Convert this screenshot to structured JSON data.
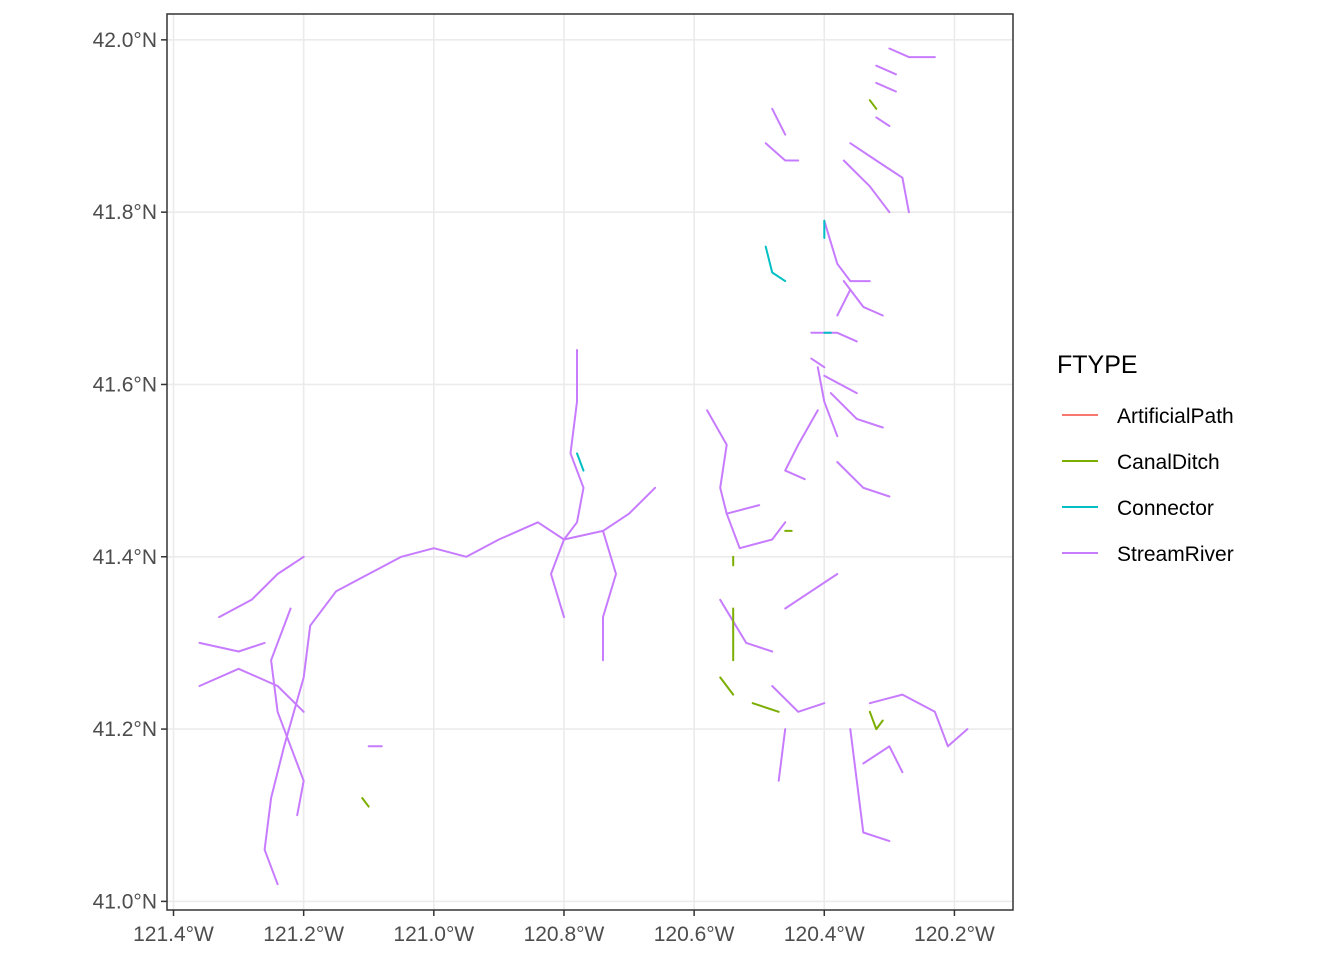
{
  "map": {
    "x_ticks": [
      "121.4°W",
      "121.2°W",
      "121.0°W",
      "120.8°W",
      "120.6°W",
      "120.4°W",
      "120.2°W"
    ],
    "y_ticks": [
      "42.0°N",
      "41.8°N",
      "41.6°N",
      "41.4°N",
      "41.2°N",
      "41.0°N"
    ],
    "x_tick_values": [
      -121.4,
      -121.2,
      -121.0,
      -120.8,
      -120.6,
      -120.4,
      -120.2
    ],
    "y_tick_values": [
      42.0,
      41.8,
      41.6,
      41.4,
      41.2,
      41.0
    ],
    "xlim": [
      -121.41,
      -120.11
    ],
    "ylim": [
      40.99,
      42.03
    ]
  },
  "legend": {
    "title": "FTYPE",
    "items": [
      {
        "label": "ArtificialPath",
        "color": "#F8766D"
      },
      {
        "label": "CanalDitch",
        "color": "#7CAE00"
      },
      {
        "label": "Connector",
        "color": "#00BFC4"
      },
      {
        "label": "StreamRiver",
        "color": "#C77CFF"
      }
    ]
  },
  "chart_data": {
    "type": "line",
    "xlim": [
      -121.41,
      -120.11
    ],
    "ylim": [
      40.99,
      42.03
    ],
    "grid": true,
    "legend_position": "right",
    "series": [
      {
        "name": "StreamRiver",
        "color": "#C77CFF",
        "paths": [
          [
            [
              -121.24,
              41.02
            ],
            [
              -121.26,
              41.06
            ],
            [
              -121.25,
              41.12
            ],
            [
              -121.23,
              41.18
            ],
            [
              -121.2,
              41.26
            ],
            [
              -121.19,
              41.32
            ],
            [
              -121.15,
              41.36
            ],
            [
              -121.1,
              41.38
            ],
            [
              -121.05,
              41.4
            ],
            [
              -121.0,
              41.41
            ],
            [
              -120.95,
              41.4
            ],
            [
              -120.9,
              41.42
            ],
            [
              -120.84,
              41.44
            ],
            [
              -120.8,
              41.42
            ],
            [
              -120.74,
              41.43
            ],
            [
              -120.7,
              41.45
            ],
            [
              -120.66,
              41.48
            ]
          ],
          [
            [
              -121.33,
              41.33
            ],
            [
              -121.28,
              41.35
            ],
            [
              -121.24,
              41.38
            ],
            [
              -121.2,
              41.4
            ]
          ],
          [
            [
              -121.36,
              41.3
            ],
            [
              -121.3,
              41.29
            ],
            [
              -121.26,
              41.3
            ]
          ],
          [
            [
              -121.36,
              41.25
            ],
            [
              -121.3,
              41.27
            ],
            [
              -121.24,
              41.25
            ],
            [
              -121.2,
              41.22
            ]
          ],
          [
            [
              -121.22,
              41.34
            ],
            [
              -121.25,
              41.28
            ],
            [
              -121.24,
              41.22
            ],
            [
              -121.22,
              41.18
            ],
            [
              -121.2,
              41.14
            ],
            [
              -121.21,
              41.1
            ]
          ],
          [
            [
              -121.1,
              41.18
            ],
            [
              -121.08,
              41.18
            ]
          ],
          [
            [
              -120.78,
              41.64
            ],
            [
              -120.78,
              41.58
            ],
            [
              -120.79,
              41.52
            ],
            [
              -120.77,
              41.48
            ],
            [
              -120.78,
              41.44
            ],
            [
              -120.8,
              41.42
            ]
          ],
          [
            [
              -120.8,
              41.42
            ],
            [
              -120.82,
              41.38
            ],
            [
              -120.8,
              41.33
            ]
          ],
          [
            [
              -120.74,
              41.43
            ],
            [
              -120.72,
              41.38
            ],
            [
              -120.74,
              41.33
            ],
            [
              -120.74,
              41.28
            ]
          ],
          [
            [
              -120.58,
              41.57
            ],
            [
              -120.55,
              41.53
            ],
            [
              -120.56,
              41.48
            ],
            [
              -120.55,
              41.45
            ],
            [
              -120.5,
              41.46
            ]
          ],
          [
            [
              -120.55,
              41.45
            ],
            [
              -120.53,
              41.41
            ],
            [
              -120.48,
              41.42
            ],
            [
              -120.46,
              41.44
            ]
          ],
          [
            [
              -120.56,
              41.35
            ],
            [
              -120.52,
              41.3
            ],
            [
              -120.48,
              41.29
            ]
          ],
          [
            [
              -120.46,
              41.34
            ],
            [
              -120.42,
              41.36
            ],
            [
              -120.38,
              41.38
            ]
          ],
          [
            [
              -120.48,
              41.25
            ],
            [
              -120.44,
              41.22
            ],
            [
              -120.4,
              41.23
            ]
          ],
          [
            [
              -120.46,
              41.2
            ],
            [
              -120.47,
              41.14
            ]
          ],
          [
            [
              -120.36,
              41.2
            ],
            [
              -120.35,
              41.14
            ],
            [
              -120.34,
              41.08
            ],
            [
              -120.3,
              41.07
            ]
          ],
          [
            [
              -120.34,
              41.16
            ],
            [
              -120.3,
              41.18
            ],
            [
              -120.28,
              41.15
            ]
          ],
          [
            [
              -120.33,
              41.23
            ],
            [
              -120.28,
              41.24
            ],
            [
              -120.23,
              41.22
            ],
            [
              -120.21,
              41.18
            ],
            [
              -120.18,
              41.2
            ]
          ],
          [
            [
              -120.41,
              41.62
            ],
            [
              -120.4,
              41.58
            ],
            [
              -120.38,
              41.54
            ]
          ],
          [
            [
              -120.39,
              41.59
            ],
            [
              -120.35,
              41.56
            ],
            [
              -120.31,
              41.55
            ]
          ],
          [
            [
              -120.4,
              41.61
            ],
            [
              -120.35,
              41.59
            ]
          ],
          [
            [
              -120.38,
              41.51
            ],
            [
              -120.34,
              41.48
            ],
            [
              -120.3,
              41.47
            ]
          ],
          [
            [
              -120.41,
              41.57
            ],
            [
              -120.44,
              41.53
            ],
            [
              -120.46,
              41.5
            ],
            [
              -120.43,
              41.49
            ]
          ],
          [
            [
              -120.4,
              41.79
            ],
            [
              -120.38,
              41.74
            ],
            [
              -120.36,
              41.72
            ],
            [
              -120.33,
              41.72
            ]
          ],
          [
            [
              -120.37,
              41.72
            ],
            [
              -120.34,
              41.69
            ],
            [
              -120.31,
              41.68
            ]
          ],
          [
            [
              -120.36,
              41.71
            ],
            [
              -120.38,
              41.68
            ]
          ],
          [
            [
              -120.42,
              41.66
            ],
            [
              -120.38,
              41.66
            ],
            [
              -120.35,
              41.65
            ]
          ],
          [
            [
              -120.42,
              41.63
            ],
            [
              -120.4,
              41.62
            ]
          ],
          [
            [
              -120.48,
              41.92
            ],
            [
              -120.46,
              41.89
            ]
          ],
          [
            [
              -120.49,
              41.88
            ],
            [
              -120.46,
              41.86
            ],
            [
              -120.44,
              41.86
            ]
          ],
          [
            [
              -120.3,
              41.99
            ],
            [
              -120.27,
              41.98
            ],
            [
              -120.23,
              41.98
            ]
          ],
          [
            [
              -120.32,
              41.97
            ],
            [
              -120.29,
              41.96
            ]
          ],
          [
            [
              -120.32,
              41.95
            ],
            [
              -120.29,
              41.94
            ]
          ],
          [
            [
              -120.32,
              41.91
            ],
            [
              -120.3,
              41.9
            ]
          ],
          [
            [
              -120.36,
              41.88
            ],
            [
              -120.32,
              41.86
            ],
            [
              -120.28,
              41.84
            ],
            [
              -120.27,
              41.8
            ]
          ],
          [
            [
              -120.37,
              41.86
            ],
            [
              -120.33,
              41.83
            ],
            [
              -120.3,
              41.8
            ]
          ]
        ]
      },
      {
        "name": "CanalDitch",
        "color": "#7CAE00",
        "paths": [
          [
            [
              -120.54,
              41.34
            ],
            [
              -120.54,
              41.28
            ]
          ],
          [
            [
              -120.56,
              41.26
            ],
            [
              -120.54,
              41.24
            ]
          ],
          [
            [
              -120.51,
              41.23
            ],
            [
              -120.47,
              41.22
            ]
          ],
          [
            [
              -120.33,
              41.22
            ],
            [
              -120.32,
              41.2
            ],
            [
              -120.31,
              41.21
            ]
          ],
          [
            [
              -120.46,
              41.43
            ],
            [
              -120.45,
              41.43
            ]
          ],
          [
            [
              -120.54,
              41.4
            ],
            [
              -120.54,
              41.39
            ]
          ],
          [
            [
              -121.11,
              41.12
            ],
            [
              -121.1,
              41.11
            ]
          ],
          [
            [
              -120.33,
              41.93
            ],
            [
              -120.32,
              41.92
            ]
          ]
        ]
      },
      {
        "name": "Connector",
        "color": "#00BFC4",
        "paths": [
          [
            [
              -120.49,
              41.76
            ],
            [
              -120.48,
              41.73
            ],
            [
              -120.46,
              41.72
            ]
          ],
          [
            [
              -120.4,
              41.79
            ],
            [
              -120.4,
              41.77
            ]
          ],
          [
            [
              -120.4,
              41.66
            ],
            [
              -120.39,
              41.66
            ]
          ],
          [
            [
              -120.78,
              41.52
            ],
            [
              -120.77,
              41.5
            ]
          ]
        ]
      }
    ]
  }
}
